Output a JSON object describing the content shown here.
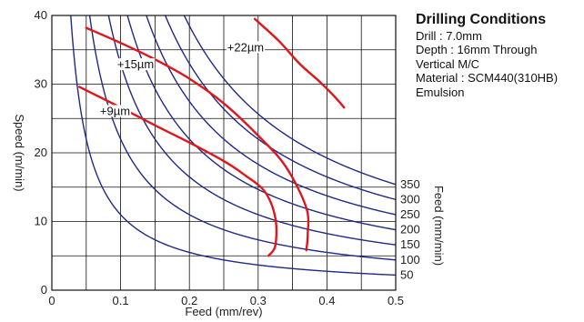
{
  "chart_data": {
    "type": "line",
    "xlabel": "Feed (mm/rev)",
    "ylabel": "Speed (m/min)",
    "y2label": "Feed (mm/min)",
    "xlim": [
      0,
      0.5
    ],
    "ylim": [
      0,
      40
    ],
    "x_ticks": [
      "0",
      "0.1",
      "0.2",
      "0.3",
      "0.4",
      "0.5"
    ],
    "y_ticks": [
      "0",
      "10",
      "20",
      "30",
      "40"
    ],
    "grid": true,
    "drill_diameter_mm": 7.0,
    "feed_rate_curves": [
      {
        "label": "50",
        "value": 50
      },
      {
        "label": "100",
        "value": 100
      },
      {
        "label": "150",
        "value": 150
      },
      {
        "label": "200",
        "value": 200
      },
      {
        "label": "250",
        "value": 250
      },
      {
        "label": "300",
        "value": 300
      },
      {
        "label": "350",
        "value": 350
      }
    ],
    "wear_series": [
      {
        "name": "+9µm",
        "label_at": [
          0.07,
          25.5
        ],
        "points": [
          [
            0.04,
            29.6
          ],
          [
            0.1,
            26.6
          ],
          [
            0.15,
            24.0
          ],
          [
            0.2,
            21.5
          ],
          [
            0.25,
            18.8
          ],
          [
            0.28,
            16.8
          ],
          [
            0.31,
            14.3
          ],
          [
            0.325,
            10.5
          ],
          [
            0.325,
            6.5
          ],
          [
            0.315,
            5.0
          ]
        ]
      },
      {
        "name": "+15µm",
        "label_at": [
          0.095,
          32.3
        ],
        "points": [
          [
            0.05,
            38.2
          ],
          [
            0.1,
            36.0
          ],
          [
            0.15,
            33.6
          ],
          [
            0.2,
            30.8
          ],
          [
            0.25,
            27.2
          ],
          [
            0.3,
            22.5
          ],
          [
            0.34,
            18.0
          ],
          [
            0.37,
            12.0
          ],
          [
            0.372,
            8.0
          ],
          [
            0.37,
            5.8
          ]
        ]
      },
      {
        "name": "+22µm",
        "label_at": [
          0.255,
          34.8
        ],
        "points": [
          [
            0.295,
            39.5
          ],
          [
            0.33,
            36.3
          ],
          [
            0.36,
            33.0
          ],
          [
            0.39,
            30.3
          ],
          [
            0.41,
            28.3
          ],
          [
            0.425,
            26.6
          ]
        ]
      }
    ]
  },
  "conditions": {
    "title": "Drilling Conditions",
    "lines": [
      "Drill : 7.0mm",
      "Depth : 16mm Through",
      "Vertical M/C",
      "Material : SCM440(310HB)",
      "Emulsion"
    ]
  },
  "colors": {
    "feed_curve": "#1f2a86",
    "wear_curve": "#e0161b",
    "grid": "#111111"
  }
}
